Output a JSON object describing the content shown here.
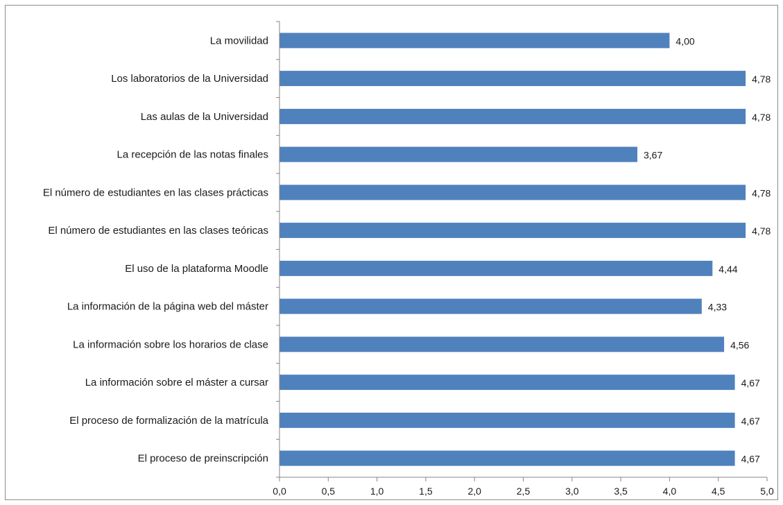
{
  "chart_data": {
    "type": "bar",
    "orientation": "horizontal",
    "title": "",
    "xlabel": "",
    "ylabel": "",
    "xlim": [
      0,
      5
    ],
    "x_ticks": [
      "0,0",
      "0,5",
      "1,0",
      "1,5",
      "2,0",
      "2,5",
      "3,0",
      "3,5",
      "4,0",
      "4,5",
      "5,0"
    ],
    "x_tick_values": [
      0,
      0.5,
      1,
      1.5,
      2,
      2.5,
      3,
      3.5,
      4,
      4.5,
      5
    ],
    "grid": false,
    "legend": "none",
    "bar_color": "#4f81bd",
    "categories": [
      "La movilidad",
      "Los laboratorios de la Universidad",
      "Las aulas de la Universidad",
      "La recepción de las notas finales",
      "El número de estudiantes en las clases prácticas",
      "El número de estudiantes en las clases teóricas",
      "El uso de la plataforma Moodle",
      "La información de la página web del máster",
      "La información sobre los horarios de clase",
      "La información sobre el máster a cursar",
      "El proceso de formalización de la matrícula",
      "El proceso de preinscripción"
    ],
    "values": [
      4.0,
      4.78,
      4.78,
      3.67,
      4.78,
      4.78,
      4.44,
      4.33,
      4.56,
      4.67,
      4.67,
      4.67
    ],
    "value_labels": [
      "4,00",
      "4,78",
      "4,78",
      "3,67",
      "4,78",
      "4,78",
      "4,44",
      "4,33",
      "4,56",
      "4,67",
      "4,67",
      "4,67"
    ]
  }
}
